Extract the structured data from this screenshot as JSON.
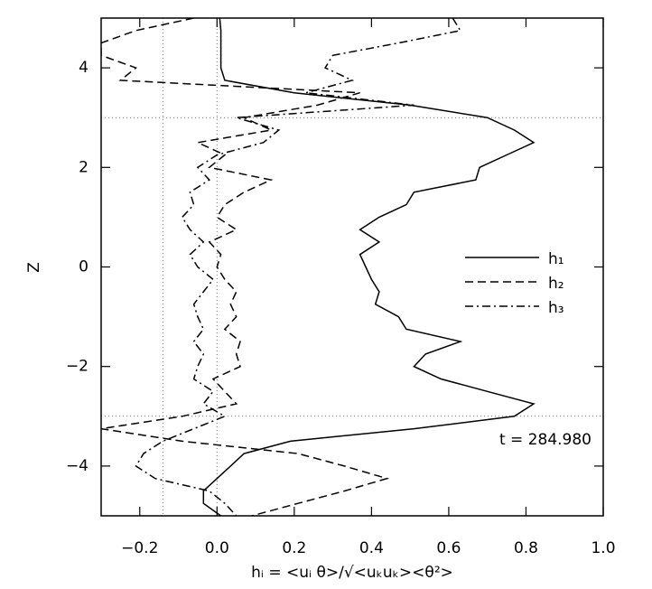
{
  "chart_data": {
    "type": "line",
    "xlabel": "hᵢ = <uᵢ θ>/√<uₖuₖ><θ²>",
    "ylabel": "Z",
    "annotation": "t = 284.980",
    "xlim": [
      -0.3,
      1.0
    ],
    "ylim": [
      -5,
      5
    ],
    "xticks": [
      {
        "value": -0.2,
        "label": "−0.2"
      },
      {
        "value": 0,
        "label": "0.0"
      },
      {
        "value": 0.2,
        "label": "0.2"
      },
      {
        "value": 0.4,
        "label": "0.4"
      },
      {
        "value": 0.6,
        "label": "0.6"
      },
      {
        "value": 0.8,
        "label": "0.8"
      },
      {
        "value": 1,
        "label": "1.0"
      }
    ],
    "yticks": [
      {
        "value": -4,
        "label": "−4"
      },
      {
        "value": -2,
        "label": "−2"
      },
      0,
      2,
      4
    ],
    "vlines": [
      -0.14,
      0
    ],
    "hlines": [
      3,
      -3
    ],
    "legend": "right",
    "y": [
      5,
      4.75,
      4.5,
      4.25,
      4,
      3.75,
      3.5,
      3.25,
      3,
      2.75,
      2.5,
      2.25,
      2,
      1.75,
      1.5,
      1.25,
      1,
      0.75,
      0.5,
      0.25,
      0,
      -0.25,
      -0.5,
      -0.75,
      -1,
      -1.25,
      -1.5,
      -1.75,
      -2,
      -2.25,
      -2.5,
      -2.75,
      -3,
      -3.25,
      -3.5,
      -3.75,
      -4,
      -4.25,
      -4.5,
      -4.75,
      -5
    ],
    "series": [
      {
        "name": "h₁",
        "color": "#000000",
        "dash": "solid",
        "values": [
          0.007,
          0.01,
          0.01,
          0.01,
          0.01,
          0.02,
          0.2,
          0.5,
          0.7,
          0.77,
          0.82,
          0.75,
          0.68,
          0.67,
          0.51,
          0.49,
          0.42,
          0.37,
          0.42,
          0.37,
          0.385,
          0.4,
          0.42,
          0.41,
          0.47,
          0.49,
          0.63,
          0.54,
          0.51,
          0.58,
          0.7,
          0.82,
          0.77,
          0.51,
          0.19,
          0.07,
          0.035,
          0,
          -0.035,
          -0.035,
          0.01
        ]
      },
      {
        "name": "h₂",
        "color": "#000000",
        "dash": "dashed",
        "values": [
          -0.06,
          -0.21,
          -0.3,
          -0.3,
          -0.21,
          -0.25,
          0.37,
          0.26,
          0.07,
          0.14,
          -0.05,
          0.02,
          -0.02,
          0.14,
          0.07,
          0.02,
          0,
          0.05,
          -0.02,
          0.01,
          0,
          0.02,
          0.05,
          0.035,
          0.05,
          0.02,
          0.06,
          0.05,
          0.06,
          -0.01,
          0.02,
          0.05,
          -0.09,
          -0.3,
          -0.09,
          0.21,
          0.33,
          0.44,
          0.33,
          0.21,
          0.09
        ]
      },
      {
        "name": "h₃",
        "color": "#000000",
        "dash": "dashdot",
        "values": [
          0.61,
          0.63,
          0.47,
          0.3,
          0.28,
          0.35,
          0.23,
          0.51,
          0.05,
          0.16,
          0.12,
          0,
          -0.05,
          -0.02,
          -0.07,
          -0.06,
          -0.09,
          -0.07,
          -0.035,
          -0.07,
          -0.05,
          -0.01,
          -0.035,
          -0.06,
          -0.05,
          -0.035,
          -0.06,
          -0.035,
          -0.05,
          -0.06,
          -0.01,
          -0.035,
          0.02,
          -0.06,
          -0.14,
          -0.19,
          -0.21,
          -0.16,
          -0.02,
          0.02,
          0.05
        ]
      }
    ]
  }
}
